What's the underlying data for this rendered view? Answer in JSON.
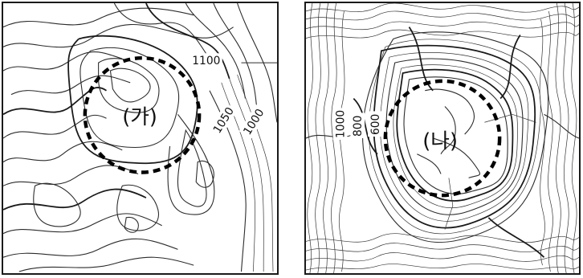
{
  "panels": [
    {
      "id": "a",
      "region_label": "(가)",
      "elevation_labels": [
        "1100",
        "1050",
        "1000"
      ]
    },
    {
      "id": "b",
      "region_label": "(나)",
      "elevation_labels": [
        "1000",
        "800",
        "600"
      ]
    }
  ]
}
